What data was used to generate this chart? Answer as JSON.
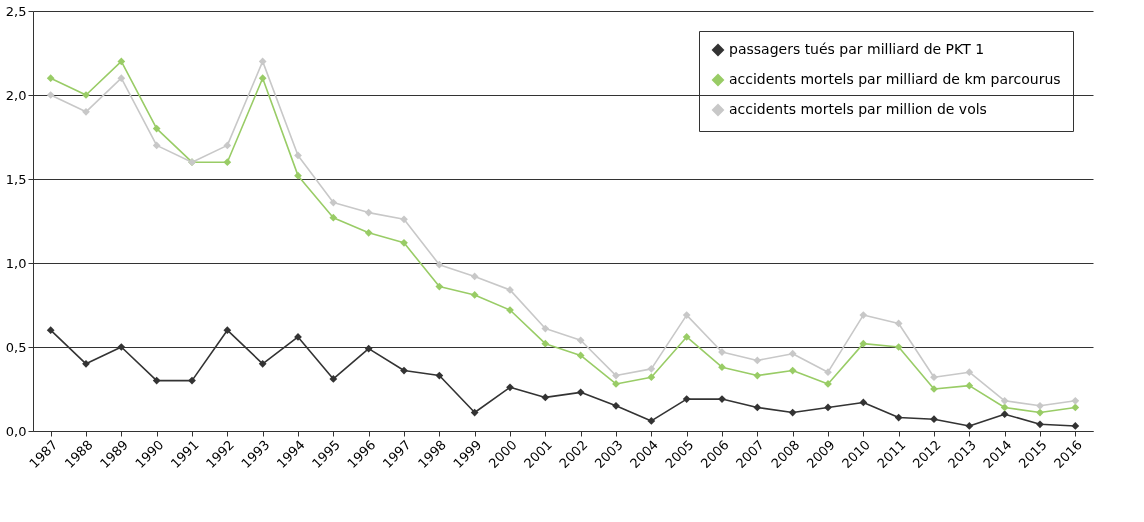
{
  "chart_data": {
    "type": "line",
    "categories": [
      "1987",
      "1988",
      "1989",
      "1990",
      "1991",
      "1992",
      "1993",
      "1994",
      "1995",
      "1996",
      "1997",
      "1998",
      "1999",
      "2000",
      "2001",
      "2002",
      "2003",
      "2004",
      "2005",
      "2006",
      "2007",
      "2008",
      "2009",
      "2010",
      "2011",
      "2012",
      "2013",
      "2014",
      "2015",
      "2016"
    ],
    "series": [
      {
        "name": "passagers tués par milliard de PKT  1",
        "color": "#333333",
        "values": [
          0.6,
          0.4,
          0.5,
          0.3,
          0.3,
          0.6,
          0.4,
          0.56,
          0.31,
          0.49,
          0.36,
          0.33,
          0.11,
          0.26,
          0.2,
          0.23,
          0.15,
          0.06,
          0.19,
          0.19,
          0.14,
          0.11,
          0.14,
          0.17,
          0.08,
          0.07,
          0.03,
          0.1,
          0.04,
          0.03
        ]
      },
      {
        "name": "accidents mortels par milliard de km parcourus",
        "color": "#99cc66",
        "values": [
          2.1,
          2.0,
          2.2,
          1.8,
          1.6,
          1.6,
          2.1,
          1.52,
          1.27,
          1.18,
          1.12,
          0.86,
          0.81,
          0.72,
          0.52,
          0.45,
          0.28,
          0.32,
          0.56,
          0.38,
          0.33,
          0.36,
          0.28,
          0.52,
          0.5,
          0.25,
          0.27,
          0.14,
          0.11,
          0.14
        ]
      },
      {
        "name": "accidents mortels par million de vols",
        "color": "#c8c8c8",
        "values": [
          2.0,
          1.9,
          2.1,
          1.7,
          1.6,
          1.7,
          2.2,
          1.64,
          1.36,
          1.3,
          1.26,
          0.99,
          0.92,
          0.84,
          0.61,
          0.54,
          0.33,
          0.37,
          0.69,
          0.47,
          0.42,
          0.46,
          0.35,
          0.69,
          0.64,
          0.32,
          0.35,
          0.18,
          0.15,
          0.18
        ]
      }
    ],
    "ylim": [
      0,
      2.5
    ],
    "yticks": [
      {
        "value": 0,
        "label": "0,0"
      },
      {
        "value": 0.5,
        "label": "0,5"
      },
      {
        "value": 1,
        "label": "1,0"
      },
      {
        "value": 1.5,
        "label": "1,5"
      },
      {
        "value": 2,
        "label": "2,0"
      },
      {
        "value": 2.5,
        "label": "2,5"
      }
    ],
    "grid": "y",
    "legend": "top right",
    "marker": "diamond",
    "line_style": "solid"
  }
}
